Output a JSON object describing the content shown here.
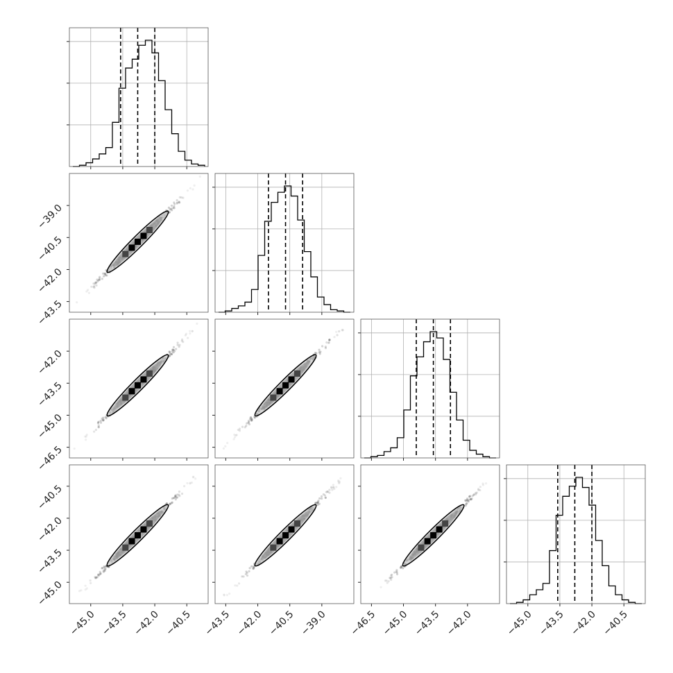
{
  "chart_data": {
    "type": "corner",
    "grid": true,
    "parameters": [
      {
        "index": 0,
        "range": [
          -46.0,
          -39.5
        ],
        "ticks": [
          -45.0,
          -43.5,
          -42.0,
          -40.5
        ],
        "tick_labels": [
          "−45.0",
          "−43.5",
          "−42.0",
          "−40.5"
        ],
        "median": -42.8,
        "q16": -43.6,
        "q84": -42.0
      },
      {
        "index": 1,
        "range": [
          -44.0,
          -37.5
        ],
        "ticks": [
          -43.5,
          -42.0,
          -40.5,
          -39.0
        ],
        "tick_labels": [
          "−43.5",
          "−42.0",
          "−40.5",
          "−39.0"
        ],
        "median": -40.7,
        "q16": -41.5,
        "q84": -39.9
      },
      {
        "index": 2,
        "range": [
          -47.0,
          -40.5
        ],
        "ticks": [
          -46.5,
          -45.0,
          -43.5,
          -42.0
        ],
        "tick_labels": [
          "−46.5",
          "−45.0",
          "−43.5",
          "−42.0"
        ],
        "median": -43.6,
        "q16": -44.4,
        "q84": -42.8
      },
      {
        "index": 3,
        "range": [
          -46.0,
          -39.5
        ],
        "ticks": [
          -45.0,
          -43.5,
          -42.0,
          -40.5
        ],
        "tick_labels": [
          "−45.0",
          "−43.5",
          "−42.0",
          "−40.5"
        ],
        "median": -42.8,
        "q16": -43.6,
        "q84": -42.0
      }
    ],
    "histograms": [
      {
        "param": 0,
        "counts": [
          0,
          1,
          3,
          6,
          10,
          15,
          35,
          62,
          78,
          85,
          96,
          100,
          90,
          68,
          45,
          26,
          12,
          5,
          2,
          1
        ]
      },
      {
        "param": 1,
        "counts": [
          0,
          1,
          3,
          5,
          8,
          18,
          45,
          72,
          87,
          95,
          100,
          92,
          73,
          48,
          28,
          12,
          6,
          2,
          1,
          0
        ]
      },
      {
        "param": 2,
        "counts": [
          0,
          1,
          2,
          5,
          8,
          16,
          38,
          65,
          80,
          92,
          100,
          95,
          78,
          52,
          30,
          14,
          6,
          3,
          1,
          0
        ]
      },
      {
        "param": 3,
        "counts": [
          0,
          1,
          3,
          7,
          11,
          16,
          42,
          70,
          85,
          93,
          100,
          92,
          78,
          50,
          30,
          14,
          7,
          3,
          1,
          0
        ]
      }
    ],
    "pairs": [
      {
        "x_param": 0,
        "y_param": 1,
        "center": [
          -42.8,
          -40.7
        ],
        "spread": 4.4
      },
      {
        "x_param": 0,
        "y_param": 2,
        "center": [
          -42.8,
          -43.6
        ],
        "spread": 4.4
      },
      {
        "x_param": 1,
        "y_param": 2,
        "center": [
          -40.7,
          -43.6
        ],
        "spread": 4.4
      },
      {
        "x_param": 0,
        "y_param": 3,
        "center": [
          -42.8,
          -42.8
        ],
        "spread": 4.4
      },
      {
        "x_param": 1,
        "y_param": 3,
        "center": [
          -40.7,
          -42.8
        ],
        "spread": 4.4
      },
      {
        "x_param": 2,
        "y_param": 3,
        "center": [
          -43.6,
          -42.8
        ],
        "spread": 4.4
      }
    ]
  }
}
